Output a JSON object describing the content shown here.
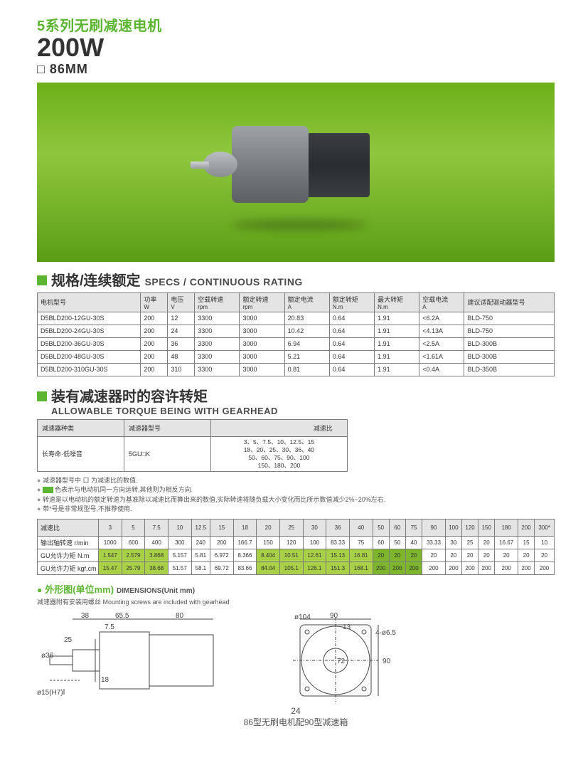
{
  "header": {
    "line1": "5系列无刷减速电机",
    "line2": "200W",
    "line3": "□ 86MM"
  },
  "hero": {
    "bg_gradient": [
      "#6cb018",
      "#8fc73e",
      "#5a9e14"
    ]
  },
  "specs": {
    "title_zh": "规格/连续额定",
    "title_en": "SPECS / CONTINUOUS RATING",
    "columns": [
      {
        "zh": "电机型号",
        "en": ""
      },
      {
        "zh": "功率",
        "en": "W"
      },
      {
        "zh": "电压",
        "en": "V"
      },
      {
        "zh": "空载转速",
        "en": "rpm"
      },
      {
        "zh": "额定转速",
        "en": "rpm"
      },
      {
        "zh": "额定电流",
        "en": "A"
      },
      {
        "zh": "额定转矩",
        "en": "N.m"
      },
      {
        "zh": "最大转矩",
        "en": "N.m"
      },
      {
        "zh": "空载电流",
        "en": "A"
      },
      {
        "zh": "建议适配驱动器型号",
        "en": ""
      }
    ],
    "rows": [
      [
        "D5BLD200-12GU-30S",
        "200",
        "12",
        "3300",
        "3000",
        "20.83",
        "0.64",
        "1.91",
        "<6.2A",
        "BLD-750"
      ],
      [
        "D5BLD200-24GU-30S",
        "200",
        "24",
        "3300",
        "3000",
        "10.42",
        "0.64",
        "1.91",
        "<4.13A",
        "BLD-750"
      ],
      [
        "D5BLD200-36GU-30S",
        "200",
        "36",
        "3300",
        "3000",
        "6.94",
        "0.64",
        "1.91",
        "<2.5A",
        "BLD-300B"
      ],
      [
        "D5BLD200-48GU-30S",
        "200",
        "48",
        "3300",
        "3000",
        "5.21",
        "0.64",
        "1.91",
        "<1.61A",
        "BLD-300B"
      ],
      [
        "D5BLD200-310GU-30S",
        "200",
        "310",
        "3300",
        "3000",
        "0.81",
        "0.64",
        "1.91",
        "<0.4A",
        "BLD-350B"
      ]
    ]
  },
  "gearhead": {
    "title_zh": "装有减速器时的容许转矩",
    "title_en": "ALLOWABLE TORQUE BEING WITH GEARHEAD",
    "col_type": "减速器种类",
    "col_model": "减速器型号",
    "col_ratio": "减速比",
    "row_type": "长寿命·低噪音",
    "row_model": "5GU□K",
    "row_ratio": "3、5、7.5、10、12.5、15\n18、20、25、30、36、40\n50、60、75、90、100\n150、180、200"
  },
  "notes": {
    "n1": "减速器型号中 口 为减速比的数值.",
    "n2_pre": "",
    "n2_chip": "",
    "n2_post": "色表示与电动机同一方向运转,其他则为相反方向.",
    "n3": "转速是以电动机的额定转速为基准除以减速比而算出来的数值,实际转速将随负载大小变化而比所示数值减少2%~20%左右.",
    "n4": "带*号是非常规型号,不推荐使用."
  },
  "torque": {
    "ratios_label": "减速比",
    "ratios": [
      "3",
      "5",
      "7.5",
      "10",
      "12.5",
      "15",
      "18",
      "20",
      "25",
      "30",
      "36",
      "40",
      "50",
      "60",
      "75",
      "90",
      "100",
      "120",
      "150",
      "180",
      "200",
      "300*"
    ],
    "speed_label": "输出轴转速 r/min",
    "speeds": [
      "1000",
      "600",
      "400",
      "300",
      "240",
      "200",
      "166.7",
      "150",
      "120",
      "100",
      "83.33",
      "75",
      "60",
      "50",
      "40",
      "33.33",
      "30",
      "25",
      "20",
      "16.67",
      "15",
      "10"
    ],
    "nm_label": "GU允许力矩 N.m",
    "nm": [
      "1.547",
      "2.579",
      "3.868",
      "5.157",
      "5.81",
      "6.972",
      "8.366",
      "8.404",
      "10.51",
      "12.61",
      "15.13",
      "16.81",
      "20",
      "20",
      "20",
      "20",
      "20",
      "20",
      "20",
      "20",
      "20",
      "20"
    ],
    "kgf_label": "GU允许力矩 kgf.cm",
    "kgf": [
      "15.47",
      "25.79",
      "38.68",
      "51.57",
      "58.1",
      "69.72",
      "83.66",
      "84.04",
      "105.1",
      "126.1",
      "151.3",
      "168.1",
      "200",
      "200",
      "200",
      "200",
      "200",
      "200",
      "200",
      "200",
      "200",
      "200"
    ],
    "highlight_a": [
      0,
      1,
      2
    ],
    "highlight_b": [
      7,
      8,
      9,
      10,
      11
    ],
    "highlight_c": [
      12,
      13,
      14
    ]
  },
  "dimensions": {
    "title_zh": "外形图(单位mm)",
    "title_en": "DIMENSIONS(Unit mm)",
    "note": "减速器附有安装用螺丝 Mounting screws are included with gearhead",
    "side": {
      "d38": "38",
      "d65_5": "65.5",
      "d80": "80",
      "d7_5": "7.5",
      "d25": "25",
      "d36": "ø36",
      "d18": "18",
      "d15": "ø15(H7)"
    },
    "front": {
      "d90h": "90",
      "d90v": "90",
      "d104": "ø104",
      "d13": "13",
      "d4x6_5": "4-ø6.5",
      "d72": "72"
    }
  },
  "page_number": "24",
  "caption": "86型无刷电机配90型减速箱"
}
